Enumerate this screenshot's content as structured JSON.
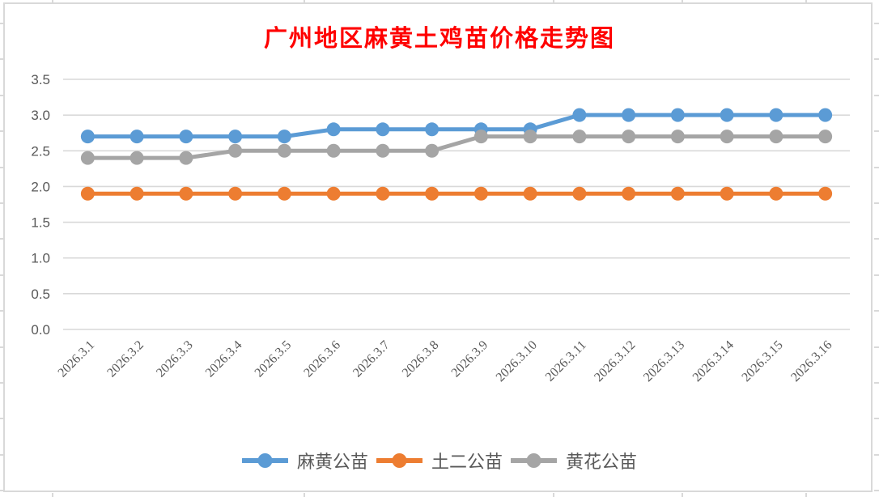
{
  "chart_data": {
    "type": "line",
    "title": "广州地区麻黄土鸡苗价格走势图",
    "title_color": "#FF0000",
    "categories": [
      "2026.3.1",
      "2026.3.2",
      "2026.3.3",
      "2026.3.4",
      "2026.3.5",
      "2026.3.6",
      "2026.3.7",
      "2026.3.8",
      "2026.3.9",
      "2026.3.10",
      "2026.3.11",
      "2026.3.12",
      "2026.3.13",
      "2026.3.14",
      "2026.3.15",
      "2026.3.16"
    ],
    "series": [
      {
        "name": "麻黄公苗",
        "color": "#5B9BD5",
        "values": [
          2.7,
          2.7,
          2.7,
          2.7,
          2.7,
          2.8,
          2.8,
          2.8,
          2.8,
          2.8,
          3.0,
          3.0,
          3.0,
          3.0,
          3.0,
          3.0
        ]
      },
      {
        "name": "土二公苗",
        "color": "#ED7D31",
        "values": [
          1.9,
          1.9,
          1.9,
          1.9,
          1.9,
          1.9,
          1.9,
          1.9,
          1.9,
          1.9,
          1.9,
          1.9,
          1.9,
          1.9,
          1.9,
          1.9
        ]
      },
      {
        "name": "黄花公苗",
        "color": "#A5A5A5",
        "values": [
          2.4,
          2.4,
          2.4,
          2.5,
          2.5,
          2.5,
          2.5,
          2.5,
          2.7,
          2.7,
          2.7,
          2.7,
          2.7,
          2.7,
          2.7,
          2.7
        ]
      }
    ],
    "ylim": [
      0.0,
      3.5
    ],
    "ytick_labels": [
      "0.0",
      "0.5",
      "1.0",
      "1.5",
      "2.0",
      "2.5",
      "3.0",
      "3.5"
    ],
    "xlabel": "",
    "ylabel": "",
    "grid": true,
    "legend_position": "bottom",
    "axis_text_color": "#595959",
    "gridline_color": "#D9D9D9",
    "marker_style": "circle"
  }
}
